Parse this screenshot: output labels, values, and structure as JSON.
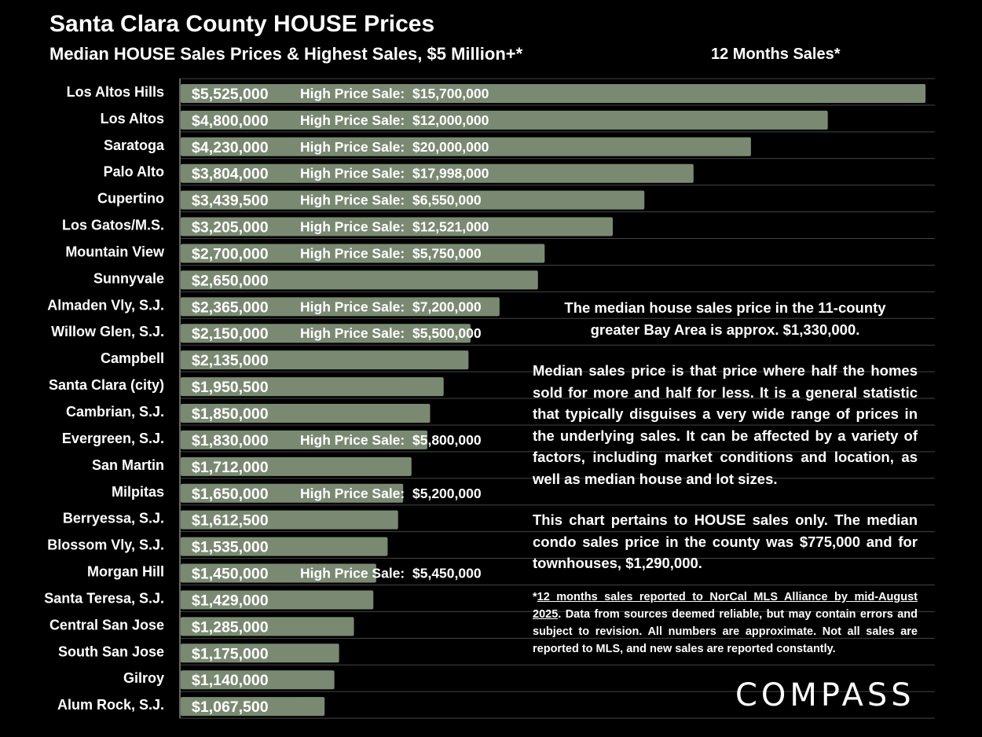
{
  "header": {
    "title": "Santa Clara County HOUSE Prices",
    "subtitle": "Median HOUSE Sales Prices & Highest Sales, $5 Million+*",
    "period": "12 Months Sales*"
  },
  "notes": {
    "bay_area": "The median house sales price in the 11-county greater Bay Area is approx. $1,330,000.",
    "definition": "Median sales price is that price where half the homes sold for more and half for less. It is a general statistic that typically disguises a very wide range of prices in the underlying sales. It can be affected by a variety of factors, including market conditions and location, as well as median house and lot sizes.",
    "house_only": "This chart pertains to HOUSE sales only. The median condo sales price in the county was $775,000 and for townhouses, $1,290,000.",
    "footnote_star": "*",
    "footnote_underlined": "12 months sales reported to NorCal MLS Alliance by mid-August 2025",
    "footnote_rest": ". Data from sources deemed reliable, but may contain errors and subject to revision. All numbers are approximate. Not all sales are reported to MLS, and new sales are reported constantly."
  },
  "logo": {
    "text": "COMPASS"
  },
  "colors": {
    "background": "#000000",
    "bar": "#7a8a72",
    "text": "#ffffff",
    "gridline": "#444444"
  },
  "chart_data": {
    "type": "bar",
    "orientation": "horizontal",
    "title": "Median HOUSE Sales Prices & Highest Sales, $5 Million+*",
    "xlim": [
      0,
      5600000
    ],
    "high_price_prefix": "High Price Sale:",
    "categories": [
      "Los Altos Hills",
      "Los Altos",
      "Saratoga",
      "Palo Alto",
      "Cupertino",
      "Los Gatos/M.S.",
      "Mountain View",
      "Sunnyvale",
      "Almaden Vly, S.J.",
      "Willow Glen, S.J.",
      "Campbell",
      "Santa Clara (city)",
      "Cambrian, S.J.",
      "Evergreen, S.J.",
      "San Martin",
      "Milpitas",
      "Berryessa, S.J.",
      "Blossom Vly, S.J.",
      "Morgan Hill",
      "Santa Teresa, S.J.",
      "Central San Jose",
      "South San Jose",
      "Gilroy",
      "Alum Rock, S.J."
    ],
    "values": [
      5525000,
      4800000,
      4230000,
      3804000,
      3439500,
      3205000,
      2700000,
      2650000,
      2365000,
      2150000,
      2135000,
      1950500,
      1850000,
      1830000,
      1712000,
      1650000,
      1612500,
      1535000,
      1450000,
      1429000,
      1285000,
      1175000,
      1140000,
      1067500
    ],
    "value_labels": [
      "$5,525,000",
      "$4,800,000",
      "$4,230,000",
      "$3,804,000",
      "$3,439,500",
      "$3,205,000",
      "$2,700,000",
      "$2,650,000",
      "$2,365,000",
      "$2,150,000",
      "$2,135,000",
      "$1,950,500",
      "$1,850,000",
      "$1,830,000",
      "$1,712,000",
      "$1,650,000",
      "$1,612,500",
      "$1,535,000",
      "$1,450,000",
      "$1,429,000",
      "$1,285,000",
      "$1,175,000",
      "$1,140,000",
      "$1,067,500"
    ],
    "high_price_sales": [
      "$15,700,000",
      "$12,000,000",
      "$20,000,000",
      "$17,998,000",
      "$6,550,000",
      "$12,521,000",
      "$5,750,000",
      null,
      "$7,200,000",
      "$5,500,000",
      null,
      null,
      null,
      "$5,800,000",
      null,
      "$5,200,000",
      null,
      null,
      "$5,450,000",
      null,
      null,
      null,
      null,
      null
    ]
  }
}
